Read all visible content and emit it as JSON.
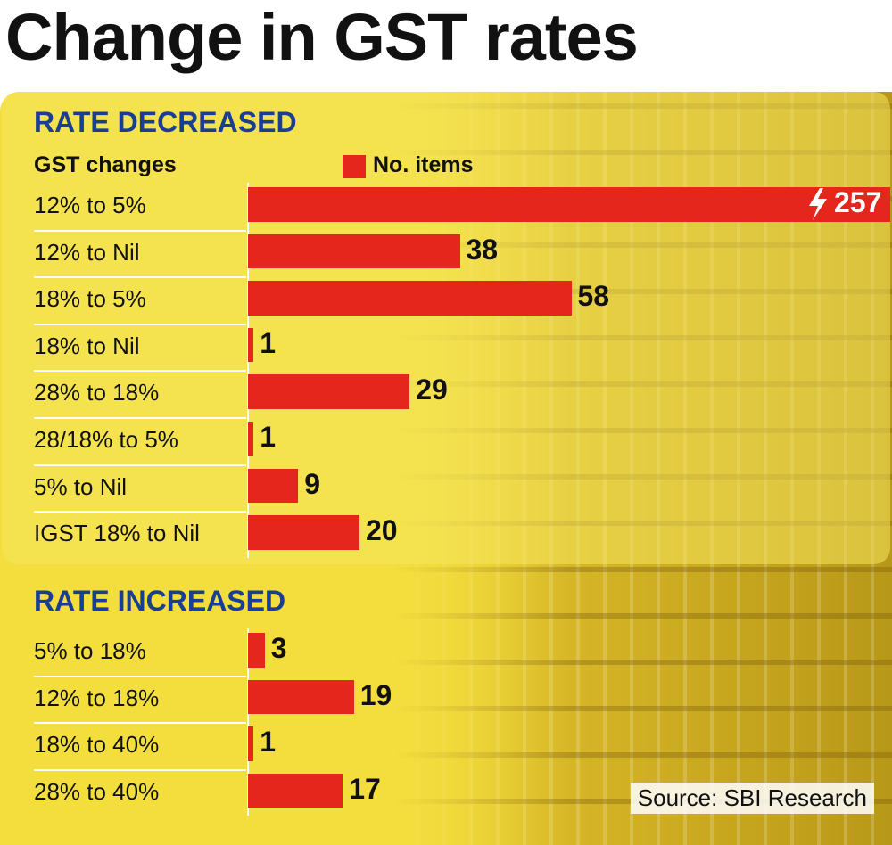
{
  "title": "Change in GST rates",
  "source": "Source: SBI Research",
  "colors": {
    "bar": "#e4261d",
    "header": "#1b3e95",
    "panel": "#f3de3e"
  },
  "chart_data": [
    {
      "type": "bar",
      "orientation": "horizontal",
      "title": "RATE DECREASED",
      "column_header": "GST changes",
      "legend": [
        "No. items"
      ],
      "categories": [
        "12% to 5%",
        "12% to Nil",
        "18% to 5%",
        "18% to Nil",
        "28% to 18%",
        "28/18% to 5%",
        "5% to Nil",
        "IGST 18% to Nil"
      ],
      "values": [
        257,
        38,
        58,
        1,
        29,
        1,
        9,
        20
      ],
      "axis_break_on": "12% to 5%"
    },
    {
      "type": "bar",
      "orientation": "horizontal",
      "title": "RATE INCREASED",
      "categories": [
        "5% to 18%",
        "12% to 18%",
        "18% to 40%",
        "28% to 40%"
      ],
      "values": [
        3,
        19,
        1,
        17
      ]
    }
  ]
}
